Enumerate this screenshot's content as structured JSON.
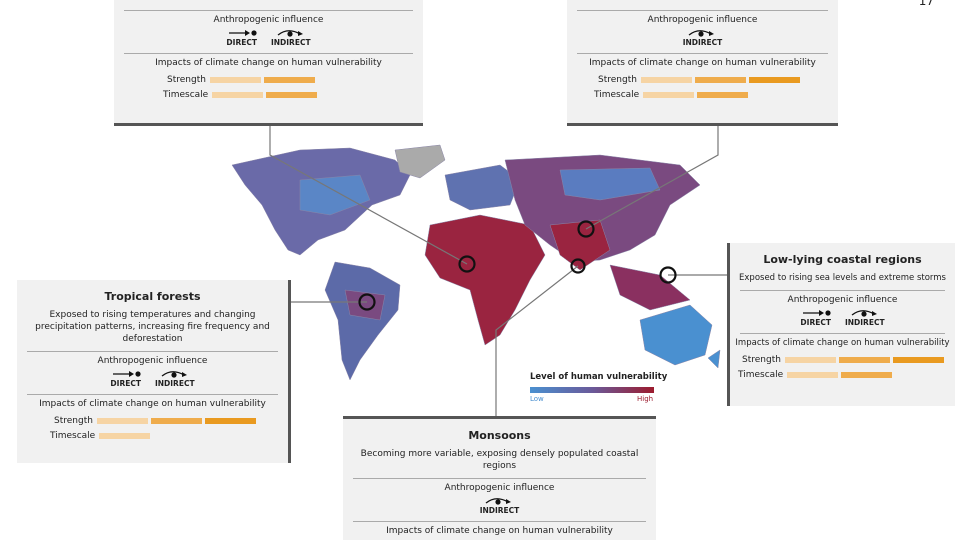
{
  "page_number": "17",
  "labels": {
    "influence": "Anthropogenic influence",
    "direct": "DIRECT",
    "indirect": "INDIRECT",
    "impacts": "Impacts of climate change on human vulnerability",
    "strength": "Strength",
    "timescale": "Timescale"
  },
  "boxes": {
    "top_left": {
      "influence": [
        "direct",
        "indirect"
      ],
      "strength": 2,
      "timescale": 2
    },
    "top_right": {
      "influence": [
        "indirect"
      ],
      "strength": 3,
      "timescale": 2
    },
    "tropical": {
      "title": "Tropical forests",
      "desc": "Exposed to rising temperatures and changing precipitation patterns, increasing fire frequency and deforestation",
      "strength": 3,
      "timescale": 1
    },
    "coastal": {
      "title": "Low-lying coastal regions",
      "desc": "Exposed to rising sea levels and extreme storms",
      "strength": 3,
      "timescale": 2
    },
    "monsoons": {
      "title": "Monsoons",
      "desc": "Becoming more variable, exposing densely populated coastal regions"
    }
  },
  "legend": {
    "title": "Level of human vulnerability",
    "low": "Low",
    "high": "High",
    "low_color": "#4a90d0",
    "high_color": "#9c1b2e"
  }
}
